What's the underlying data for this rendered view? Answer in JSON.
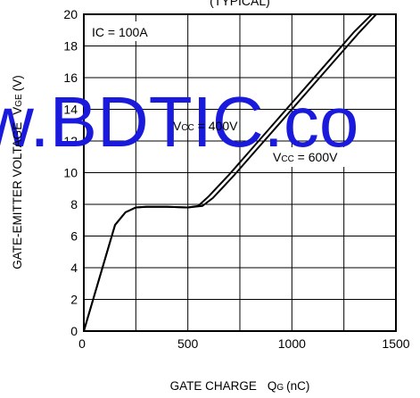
{
  "chart_data": {
    "type": "line",
    "title": "(TYPICAL)",
    "xlabel": "GATE CHARGE",
    "xlabel_symbol": "Q",
    "xlabel_sub": "G",
    "xlabel_unit": "(nC)",
    "ylabel": "GATE-EMITTER VOLTAGE",
    "ylabel_symbol": "V",
    "ylabel_sub": "GE",
    "ylabel_unit": "(V)",
    "xlim": [
      0,
      1500
    ],
    "ylim": [
      0,
      20
    ],
    "xticks": [
      0,
      500,
      1000,
      1500
    ],
    "yticks": [
      0,
      2,
      4,
      6,
      8,
      10,
      12,
      14,
      16,
      18,
      20
    ],
    "grid": true,
    "annotations": {
      "ic": {
        "text": "IC = 100A"
      },
      "vcc400": {
        "prefix": "V",
        "sub": "CC",
        "suffix": " = 400V"
      },
      "vcc600": {
        "prefix": "V",
        "sub": "CC",
        "suffix": " = 600V"
      }
    },
    "series": [
      {
        "label": "VCC = 400V",
        "x": [
          0,
          150,
          200,
          250,
          300,
          400,
          500,
          550,
          600,
          700,
          800,
          900,
          1000,
          1100,
          1200,
          1300,
          1400
        ],
        "y": [
          0,
          6.7,
          7.5,
          7.8,
          7.85,
          7.85,
          7.8,
          7.9,
          8.5,
          9.9,
          11.4,
          12.9,
          14.4,
          15.9,
          17.4,
          18.9,
          20.2
        ]
      },
      {
        "label": "VCC = 600V",
        "x": [
          0,
          150,
          200,
          250,
          300,
          400,
          500,
          570,
          620,
          720,
          820,
          920,
          1020,
          1120,
          1220,
          1320,
          1420
        ],
        "y": [
          0,
          6.7,
          7.5,
          7.8,
          7.85,
          7.85,
          7.8,
          7.9,
          8.4,
          9.8,
          11.3,
          12.8,
          14.3,
          15.8,
          17.3,
          18.8,
          20.2
        ]
      }
    ]
  },
  "watermark": "w.BDTIC.co",
  "colors": {
    "line": "#000000",
    "grid": "#000000",
    "watermark": "#1a1adc"
  }
}
